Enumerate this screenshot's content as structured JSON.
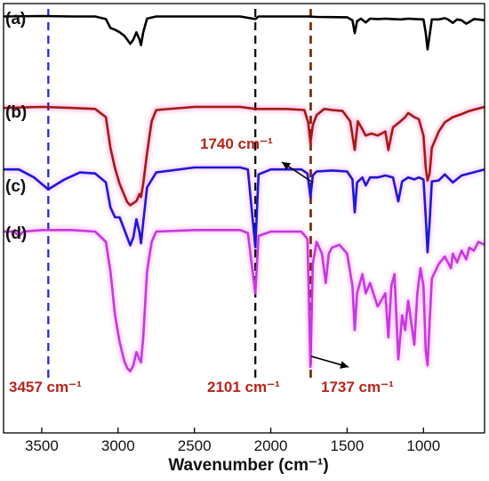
{
  "chart_data": {
    "type": "line",
    "title": "",
    "xlabel": "Wavenumber (cm⁻¹)",
    "ylabel": "",
    "xlim": [
      3750,
      600
    ],
    "x_reversed": true,
    "y_axis_values_shown": false,
    "grid": false,
    "xticks": [
      {
        "value": 3500,
        "label": "3500"
      },
      {
        "value": 3000,
        "label": "3000"
      },
      {
        "value": 2500,
        "label": "2500"
      },
      {
        "value": 2000,
        "label": "2000"
      },
      {
        "value": 1500,
        "label": "1500"
      },
      {
        "value": 1000,
        "label": "1000"
      }
    ],
    "panel_labels": [
      "(a)",
      "(b)",
      "(c)",
      "(d)"
    ],
    "series": [
      {
        "label": "(a)",
        "color": "#000000",
        "points": [
          [
            3750,
            0.99
          ],
          [
            3500,
            1.0
          ],
          [
            3300,
            0.99
          ],
          [
            3150,
            0.99
          ],
          [
            3080,
            0.93
          ],
          [
            3050,
            0.72
          ],
          [
            3020,
            0.68
          ],
          [
            2990,
            0.62
          ],
          [
            2960,
            0.54
          ],
          [
            2940,
            0.45
          ],
          [
            2920,
            0.35
          ],
          [
            2900,
            0.45
          ],
          [
            2880,
            0.62
          ],
          [
            2860,
            0.45
          ],
          [
            2850,
            0.32
          ],
          [
            2835,
            0.62
          ],
          [
            2810,
            0.94
          ],
          [
            2750,
            0.99
          ],
          [
            2500,
            0.99
          ],
          [
            2200,
            0.99
          ],
          [
            2101,
            0.93
          ],
          [
            2080,
            0.99
          ],
          [
            1750,
            0.99
          ],
          [
            1700,
            0.98
          ],
          [
            1500,
            0.97
          ],
          [
            1465,
            0.9
          ],
          [
            1450,
            0.6
          ],
          [
            1435,
            0.88
          ],
          [
            1410,
            0.94
          ],
          [
            1378,
            0.85
          ],
          [
            1350,
            0.94
          ],
          [
            1300,
            0.93
          ],
          [
            1250,
            0.94
          ],
          [
            1200,
            0.93
          ],
          [
            1150,
            0.92
          ],
          [
            1100,
            0.94
          ],
          [
            1050,
            0.93
          ],
          [
            1000,
            0.92
          ],
          [
            985,
            0.6
          ],
          [
            973,
            0.22
          ],
          [
            960,
            0.55
          ],
          [
            945,
            0.92
          ],
          [
            900,
            0.92
          ],
          [
            860,
            0.95
          ],
          [
            840,
            0.92
          ],
          [
            808,
            0.84
          ],
          [
            780,
            0.92
          ],
          [
            750,
            0.9
          ],
          [
            720,
            0.82
          ],
          [
            700,
            0.86
          ],
          [
            670,
            0.93
          ],
          [
            640,
            0.92
          ],
          [
            600,
            0.9
          ]
        ]
      },
      {
        "label": "(b)",
        "color": "#a31b12",
        "points": [
          [
            3750,
            0.99
          ],
          [
            3500,
            1.0
          ],
          [
            3300,
            0.99
          ],
          [
            3150,
            0.98
          ],
          [
            3080,
            0.9
          ],
          [
            3050,
            0.6
          ],
          [
            3020,
            0.4
          ],
          [
            2990,
            0.25
          ],
          [
            2960,
            0.14
          ],
          [
            2940,
            0.07
          ],
          [
            2920,
            0.04
          ],
          [
            2900,
            0.06
          ],
          [
            2880,
            0.08
          ],
          [
            2860,
            0.15
          ],
          [
            2850,
            0.12
          ],
          [
            2835,
            0.25
          ],
          [
            2810,
            0.55
          ],
          [
            2780,
            0.86
          ],
          [
            2750,
            0.97
          ],
          [
            2500,
            1.0
          ],
          [
            2200,
            1.0
          ],
          [
            2101,
            0.98
          ],
          [
            1900,
            0.98
          ],
          [
            1780,
            0.97
          ],
          [
            1755,
            0.85
          ],
          [
            1740,
            0.65
          ],
          [
            1725,
            0.82
          ],
          [
            1700,
            0.92
          ],
          [
            1650,
            0.98
          ],
          [
            1600,
            0.97
          ],
          [
            1530,
            0.96
          ],
          [
            1480,
            0.86
          ],
          [
            1450,
            0.58
          ],
          [
            1430,
            0.86
          ],
          [
            1400,
            0.78
          ],
          [
            1378,
            0.72
          ],
          [
            1340,
            0.74
          ],
          [
            1300,
            0.72
          ],
          [
            1250,
            0.76
          ],
          [
            1230,
            0.58
          ],
          [
            1200,
            0.8
          ],
          [
            1150,
            0.86
          ],
          [
            1120,
            0.9
          ],
          [
            1100,
            0.94
          ],
          [
            1060,
            0.9
          ],
          [
            1030,
            0.88
          ],
          [
            1000,
            0.72
          ],
          [
            985,
            0.4
          ],
          [
            973,
            0.28
          ],
          [
            960,
            0.35
          ],
          [
            945,
            0.6
          ],
          [
            900,
            0.76
          ],
          [
            860,
            0.85
          ],
          [
            808,
            0.9
          ],
          [
            750,
            0.93
          ],
          [
            700,
            0.96
          ],
          [
            650,
            0.98
          ],
          [
            600,
            1.0
          ]
        ]
      },
      {
        "label": "(c)",
        "color": "#1a1ad6",
        "points": [
          [
            3750,
            0.98
          ],
          [
            3650,
            0.98
          ],
          [
            3550,
            0.9
          ],
          [
            3457,
            0.78
          ],
          [
            3350,
            0.88
          ],
          [
            3250,
            0.95
          ],
          [
            3150,
            0.94
          ],
          [
            3080,
            0.85
          ],
          [
            3050,
            0.6
          ],
          [
            3020,
            0.5
          ],
          [
            2990,
            0.5
          ],
          [
            2960,
            0.38
          ],
          [
            2940,
            0.3
          ],
          [
            2920,
            0.22
          ],
          [
            2900,
            0.3
          ],
          [
            2880,
            0.48
          ],
          [
            2860,
            0.35
          ],
          [
            2850,
            0.24
          ],
          [
            2835,
            0.45
          ],
          [
            2810,
            0.8
          ],
          [
            2750,
            0.95
          ],
          [
            2500,
            1.0
          ],
          [
            2200,
            1.0
          ],
          [
            2150,
            0.98
          ],
          [
            2101,
            0.2
          ],
          [
            2080,
            0.93
          ],
          [
            2000,
            0.98
          ],
          [
            1800,
            0.98
          ],
          [
            1760,
            0.94
          ],
          [
            1740,
            0.7
          ],
          [
            1725,
            0.92
          ],
          [
            1700,
            0.96
          ],
          [
            1600,
            0.97
          ],
          [
            1500,
            0.96
          ],
          [
            1465,
            0.88
          ],
          [
            1450,
            0.55
          ],
          [
            1435,
            0.85
          ],
          [
            1400,
            0.9
          ],
          [
            1378,
            0.82
          ],
          [
            1350,
            0.9
          ],
          [
            1300,
            0.9
          ],
          [
            1250,
            0.92
          ],
          [
            1200,
            0.9
          ],
          [
            1165,
            0.66
          ],
          [
            1140,
            0.86
          ],
          [
            1100,
            0.9
          ],
          [
            1060,
            0.88
          ],
          [
            1030,
            0.9
          ],
          [
            1000,
            0.88
          ],
          [
            985,
            0.5
          ],
          [
            973,
            0.15
          ],
          [
            960,
            0.45
          ],
          [
            945,
            0.86
          ],
          [
            900,
            0.87
          ],
          [
            860,
            0.93
          ],
          [
            808,
            0.85
          ],
          [
            750,
            0.92
          ],
          [
            700,
            0.94
          ],
          [
            650,
            0.96
          ],
          [
            600,
            0.98
          ]
        ]
      },
      {
        "label": "(d)",
        "color": "#c837e3",
        "points": [
          [
            3750,
            0.97
          ],
          [
            3680,
            0.97
          ],
          [
            3650,
            0.94
          ],
          [
            3620,
            0.97
          ],
          [
            3500,
            0.98
          ],
          [
            3300,
            0.98
          ],
          [
            3150,
            0.97
          ],
          [
            3080,
            0.9
          ],
          [
            3050,
            0.7
          ],
          [
            3020,
            0.4
          ],
          [
            2990,
            0.22
          ],
          [
            2960,
            0.09
          ],
          [
            2940,
            0.04
          ],
          [
            2920,
            0.02
          ],
          [
            2900,
            0.06
          ],
          [
            2880,
            0.15
          ],
          [
            2860,
            0.1
          ],
          [
            2850,
            0.08
          ],
          [
            2835,
            0.25
          ],
          [
            2810,
            0.7
          ],
          [
            2780,
            0.9
          ],
          [
            2750,
            0.97
          ],
          [
            2500,
            0.98
          ],
          [
            2200,
            0.98
          ],
          [
            2150,
            0.96
          ],
          [
            2101,
            0.55
          ],
          [
            2080,
            0.94
          ],
          [
            2000,
            0.97
          ],
          [
            1800,
            0.97
          ],
          [
            1760,
            0.92
          ],
          [
            1740,
            0.05
          ],
          [
            1725,
            0.75
          ],
          [
            1700,
            0.9
          ],
          [
            1665,
            0.82
          ],
          [
            1640,
            0.62
          ],
          [
            1620,
            0.82
          ],
          [
            1600,
            0.86
          ],
          [
            1550,
            0.88
          ],
          [
            1500,
            0.82
          ],
          [
            1465,
            0.6
          ],
          [
            1450,
            0.3
          ],
          [
            1435,
            0.55
          ],
          [
            1400,
            0.68
          ],
          [
            1378,
            0.55
          ],
          [
            1350,
            0.62
          ],
          [
            1300,
            0.46
          ],
          [
            1250,
            0.55
          ],
          [
            1230,
            0.25
          ],
          [
            1210,
            0.6
          ],
          [
            1190,
            0.68
          ],
          [
            1165,
            0.1
          ],
          [
            1140,
            0.4
          ],
          [
            1120,
            0.3
          ],
          [
            1100,
            0.5
          ],
          [
            1060,
            0.2
          ],
          [
            1040,
            0.55
          ],
          [
            1020,
            0.72
          ],
          [
            1000,
            0.6
          ],
          [
            985,
            0.15
          ],
          [
            973,
            0.06
          ],
          [
            960,
            0.35
          ],
          [
            945,
            0.65
          ],
          [
            900,
            0.75
          ],
          [
            860,
            0.8
          ],
          [
            820,
            0.72
          ],
          [
            808,
            0.82
          ],
          [
            780,
            0.76
          ],
          [
            750,
            0.84
          ],
          [
            720,
            0.78
          ],
          [
            700,
            0.86
          ],
          [
            670,
            0.84
          ],
          [
            640,
            0.9
          ],
          [
            600,
            0.88
          ]
        ]
      }
    ],
    "reference_lines": [
      {
        "x": 3457,
        "color": "#1e1ee0",
        "style": "dashed"
      },
      {
        "x": 2101,
        "color": "#000000",
        "style": "dashed"
      },
      {
        "x": 1740,
        "color": "#7a2a00",
        "style": "dashed"
      },
      {
        "x": 1737,
        "color": "#7a2a00",
        "style": "dashed"
      }
    ],
    "annotations": [
      {
        "id": "peak-1740",
        "text": "1740 cm⁻¹",
        "color": "#b8241a",
        "arrow": true
      },
      {
        "id": "peak-3457",
        "text": "3457 cm⁻¹",
        "color": "#b8241a",
        "arrow": false
      },
      {
        "id": "peak-2101",
        "text": "2101 cm⁻¹",
        "color": "#b8241a",
        "arrow": false
      },
      {
        "id": "peak-1737",
        "text": "1737 cm⁻¹",
        "color": "#b8241a",
        "arrow": true
      }
    ]
  }
}
